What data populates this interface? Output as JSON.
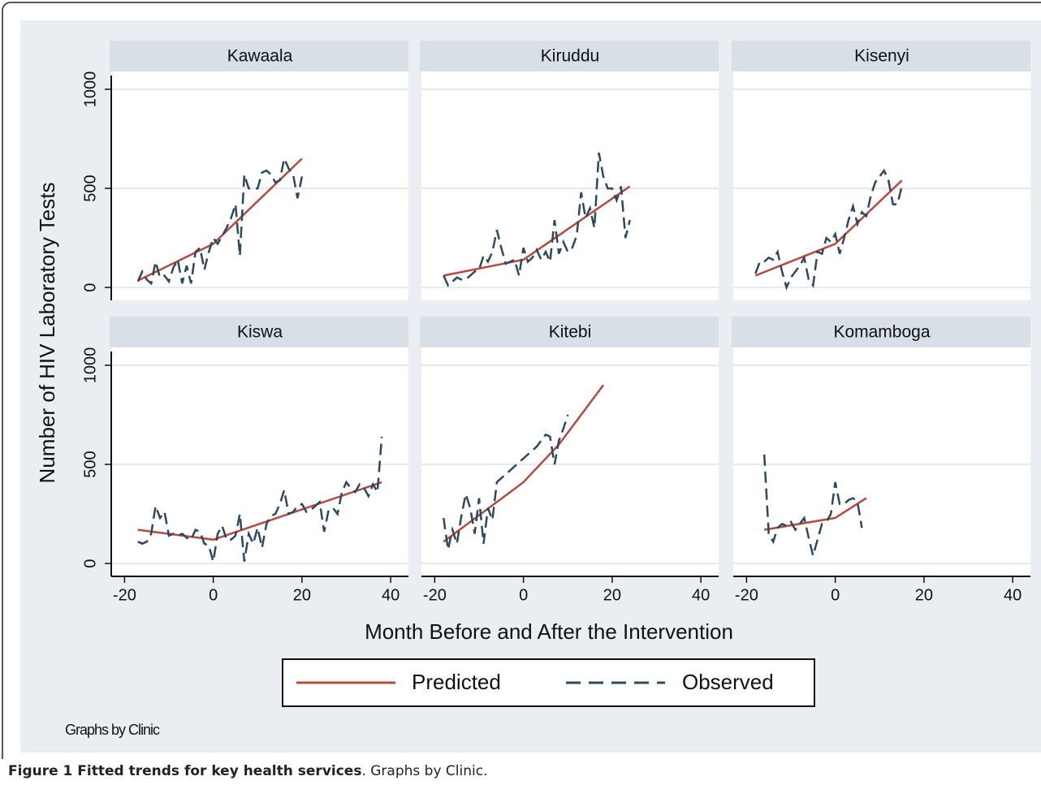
{
  "chart_data": [
    {
      "type": "line",
      "title": "Kawaala",
      "xlim": [
        -23,
        44
      ],
      "ylim": [
        -65,
        1090
      ],
      "yticks": [
        0,
        500,
        1000
      ],
      "grid": true,
      "series": [
        {
          "x": [
            -17,
            0,
            20
          ],
          "values": [
            35,
            220,
            650
          ]
        },
        {
          "x": [
            -17,
            -16,
            -15,
            -14,
            -13,
            -12,
            -11,
            -10,
            -9,
            -8,
            -7,
            -6,
            -5,
            -4,
            -3,
            -2,
            -1,
            0,
            1,
            2,
            3,
            4,
            5,
            6,
            7,
            8,
            9,
            10,
            11,
            12,
            13,
            14,
            15,
            16,
            17,
            18,
            19,
            20
          ],
          "values": [
            30,
            80,
            40,
            20,
            130,
            50,
            60,
            30,
            100,
            140,
            20,
            110,
            20,
            180,
            200,
            90,
            180,
            250,
            220,
            260,
            300,
            350,
            420,
            160,
            570,
            500,
            500,
            500,
            580,
            590,
            570,
            530,
            540,
            650,
            600,
            570,
            450,
            560
          ]
        }
      ]
    },
    {
      "type": "line",
      "title": "Kiruddu",
      "xlim": [
        -23,
        44
      ],
      "ylim": [
        -65,
        1090
      ],
      "yticks": [
        0,
        500,
        1000
      ],
      "grid": true,
      "series": [
        {
          "x": [
            -18,
            0,
            24
          ],
          "values": [
            60,
            140,
            510
          ]
        },
        {
          "x": [
            -18,
            -17,
            -16,
            -15,
            -14,
            -13,
            -12,
            -11,
            -10,
            -9,
            -8,
            -7,
            -6,
            -5,
            -4,
            -3,
            -2,
            -1,
            0,
            1,
            2,
            3,
            4,
            5,
            6,
            7,
            8,
            9,
            10,
            11,
            12,
            13,
            14,
            15,
            16,
            17,
            18,
            19,
            20,
            21,
            22,
            23,
            24
          ],
          "values": [
            60,
            10,
            30,
            50,
            40,
            40,
            60,
            80,
            90,
            160,
            130,
            180,
            290,
            200,
            120,
            130,
            140,
            60,
            200,
            130,
            150,
            190,
            140,
            180,
            130,
            340,
            170,
            230,
            180,
            200,
            260,
            480,
            350,
            400,
            300,
            680,
            560,
            500,
            500,
            440,
            510,
            250,
            340
          ]
        }
      ]
    },
    {
      "type": "line",
      "title": "Kisenyi",
      "xlim": [
        -23,
        44
      ],
      "ylim": [
        -65,
        1090
      ],
      "yticks": [
        0,
        500,
        1000
      ],
      "grid": true,
      "series": [
        {
          "x": [
            -18,
            0,
            15
          ],
          "values": [
            60,
            220,
            540
          ]
        },
        {
          "x": [
            -18,
            -17,
            -16,
            -15,
            -14,
            -13,
            -12,
            -11,
            -10,
            -9,
            -8,
            -7,
            -6,
            -5,
            -4,
            -3,
            -2,
            -1,
            0,
            1,
            2,
            3,
            4,
            5,
            6,
            7,
            8,
            9,
            10,
            11,
            12,
            13,
            14,
            15
          ],
          "values": [
            70,
            130,
            130,
            150,
            140,
            180,
            80,
            0,
            50,
            80,
            110,
            150,
            40,
            10,
            180,
            170,
            250,
            230,
            270,
            170,
            250,
            340,
            410,
            320,
            380,
            360,
            460,
            530,
            560,
            590,
            540,
            420,
            420,
            510
          ]
        }
      ]
    },
    {
      "type": "line",
      "title": "Kiswa",
      "xlim": [
        -23,
        44
      ],
      "ylim": [
        -65,
        1090
      ],
      "xticks": [
        -20,
        0,
        20,
        40
      ],
      "yticks": [
        0,
        500,
        1000
      ],
      "grid": true,
      "series": [
        {
          "x": [
            -17,
            0,
            38
          ],
          "values": [
            170,
            120,
            410
          ]
        },
        {
          "x": [
            -17,
            -16,
            -15,
            -14,
            -13,
            -12,
            -11,
            -10,
            -9,
            -8,
            -7,
            -6,
            -5,
            -4,
            -3,
            -2,
            -1,
            0,
            1,
            2,
            3,
            4,
            5,
            6,
            7,
            8,
            9,
            10,
            11,
            12,
            13,
            14,
            15,
            16,
            17,
            18,
            19,
            20,
            21,
            22,
            23,
            24,
            25,
            26,
            27,
            28,
            29,
            30,
            31,
            32,
            33,
            34,
            35,
            36,
            37,
            38
          ],
          "values": [
            110,
            100,
            110,
            150,
            290,
            230,
            260,
            140,
            150,
            140,
            150,
            130,
            120,
            170,
            160,
            100,
            90,
            10,
            150,
            190,
            120,
            120,
            140,
            250,
            10,
            150,
            100,
            180,
            80,
            200,
            240,
            250,
            300,
            370,
            250,
            260,
            290,
            300,
            260,
            270,
            290,
            310,
            160,
            270,
            280,
            250,
            360,
            410,
            380,
            360,
            400,
            380,
            340,
            400,
            360,
            640
          ]
        }
      ]
    },
    {
      "type": "line",
      "title": "Kitebi",
      "xlim": [
        -23,
        44
      ],
      "ylim": [
        -65,
        1090
      ],
      "xticks": [
        -20,
        0,
        20,
        40
      ],
      "yticks": [
        0,
        500,
        1000
      ],
      "grid": true,
      "series": [
        {
          "x": [
            -18,
            0,
            8,
            18
          ],
          "values": [
            110,
            410,
            600,
            900
          ]
        },
        {
          "x": [
            -18,
            -17,
            -16,
            -15,
            -14,
            -13,
            -12,
            -11,
            -10,
            -9,
            -8,
            -7,
            -6,
            -5,
            -4,
            -3,
            -2,
            -1,
            0,
            1,
            2,
            3,
            4,
            5,
            6,
            7,
            8,
            9,
            10
          ],
          "values": [
            230,
            70,
            170,
            100,
            240,
            350,
            280,
            150,
            330,
            100,
            280,
            220,
            410,
            430,
            450,
            470,
            490,
            510,
            530,
            550,
            570,
            590,
            620,
            650,
            640,
            500,
            620,
            680,
            750
          ]
        }
      ]
    },
    {
      "type": "line",
      "title": "Komamboga",
      "xlim": [
        -23,
        44
      ],
      "ylim": [
        -65,
        1090
      ],
      "xticks": [
        -20,
        0,
        20,
        40
      ],
      "yticks": [
        0,
        500,
        1000
      ],
      "grid": true,
      "series": [
        {
          "x": [
            -16,
            0,
            7
          ],
          "values": [
            170,
            230,
            330
          ]
        },
        {
          "x": [
            -16,
            -15,
            -14,
            -13,
            -12,
            -11,
            -10,
            -9,
            -8,
            -7,
            -6,
            -5,
            -4,
            -3,
            -2,
            -1,
            0,
            1,
            2,
            3,
            4,
            5,
            6
          ],
          "values": [
            550,
            150,
            110,
            180,
            200,
            190,
            210,
            170,
            200,
            230,
            130,
            40,
            120,
            200,
            210,
            250,
            410,
            300,
            300,
            320,
            330,
            310,
            180
          ]
        }
      ]
    }
  ],
  "figure": {
    "ylabel": "Number of HIV Laboratory Tests",
    "xlabel": "Month Before and After the Intervention",
    "legend": [
      {
        "name": "Predicted",
        "color": "#b9483e",
        "dash": false
      },
      {
        "name": "Observed",
        "color": "#2b4a5f",
        "dash": true
      }
    ],
    "note": "Graphs by Clinic"
  },
  "caption": {
    "label": "Figure 1 Fitted trends for key health services",
    "text": ". Graphs by Clinic."
  }
}
